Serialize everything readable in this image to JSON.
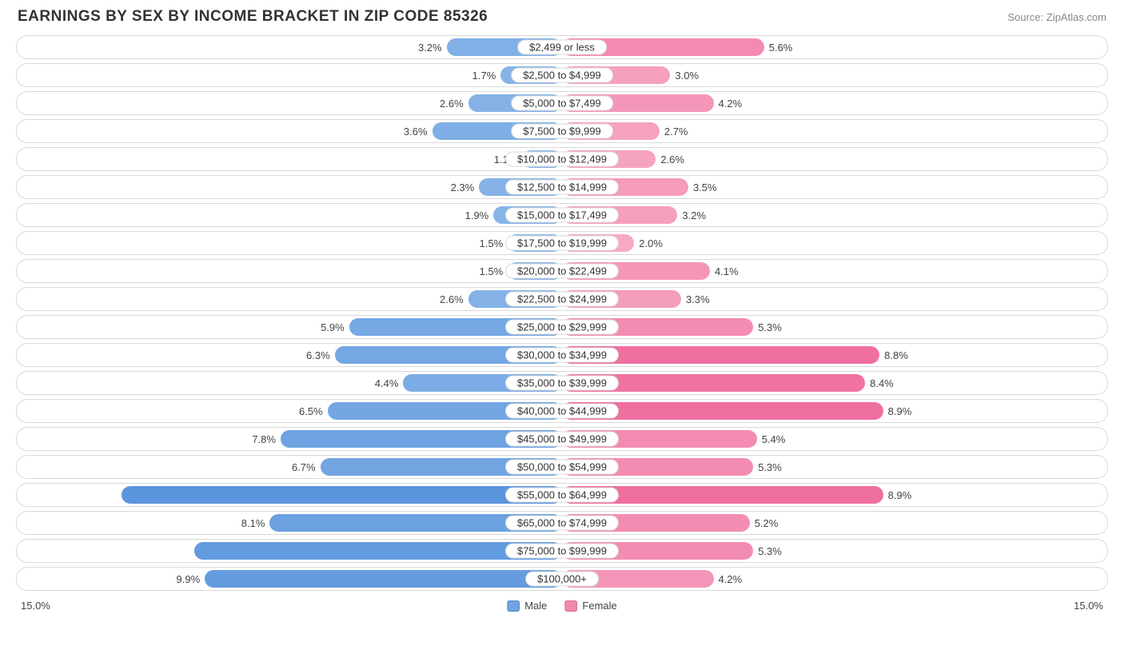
{
  "title": "EARNINGS BY SEX BY INCOME BRACKET IN ZIP CODE 85326",
  "source": "Source: ZipAtlas.com",
  "axis_max_pct": 15.0,
  "axis_label_left": "15.0%",
  "axis_label_right": "15.0%",
  "legend": {
    "male_label": "Male",
    "female_label": "Female",
    "male_color": "#6da3e0",
    "female_color": "#f288ac"
  },
  "colors": {
    "male_bar_low": "#8ab6e8",
    "male_bar_high": "#5b95dd",
    "female_bar_low": "#f7a8c4",
    "female_bar_high": "#ef6ea0",
    "track_border": "#d9d9d9",
    "text": "#444444",
    "title_text": "#333333",
    "background": "#ffffff"
  },
  "rows": [
    {
      "bracket": "$2,499 or less",
      "male": 3.2,
      "female": 5.6
    },
    {
      "bracket": "$2,500 to $4,999",
      "male": 1.7,
      "female": 3.0
    },
    {
      "bracket": "$5,000 to $7,499",
      "male": 2.6,
      "female": 4.2
    },
    {
      "bracket": "$7,500 to $9,999",
      "male": 3.6,
      "female": 2.7
    },
    {
      "bracket": "$10,000 to $12,499",
      "male": 1.1,
      "female": 2.6
    },
    {
      "bracket": "$12,500 to $14,999",
      "male": 2.3,
      "female": 3.5
    },
    {
      "bracket": "$15,000 to $17,499",
      "male": 1.9,
      "female": 3.2
    },
    {
      "bracket": "$17,500 to $19,999",
      "male": 1.5,
      "female": 2.0
    },
    {
      "bracket": "$20,000 to $22,499",
      "male": 1.5,
      "female": 4.1
    },
    {
      "bracket": "$22,500 to $24,999",
      "male": 2.6,
      "female": 3.3
    },
    {
      "bracket": "$25,000 to $29,999",
      "male": 5.9,
      "female": 5.3
    },
    {
      "bracket": "$30,000 to $34,999",
      "male": 6.3,
      "female": 8.8
    },
    {
      "bracket": "$35,000 to $39,999",
      "male": 4.4,
      "female": 8.4
    },
    {
      "bracket": "$40,000 to $44,999",
      "male": 6.5,
      "female": 8.9
    },
    {
      "bracket": "$45,000 to $49,999",
      "male": 7.8,
      "female": 5.4
    },
    {
      "bracket": "$50,000 to $54,999",
      "male": 6.7,
      "female": 5.3
    },
    {
      "bracket": "$55,000 to $64,999",
      "male": 12.2,
      "female": 8.9
    },
    {
      "bracket": "$65,000 to $74,999",
      "male": 8.1,
      "female": 5.2
    },
    {
      "bracket": "$75,000 to $99,999",
      "male": 10.2,
      "female": 5.3
    },
    {
      "bracket": "$100,000+",
      "male": 9.9,
      "female": 4.2
    }
  ]
}
